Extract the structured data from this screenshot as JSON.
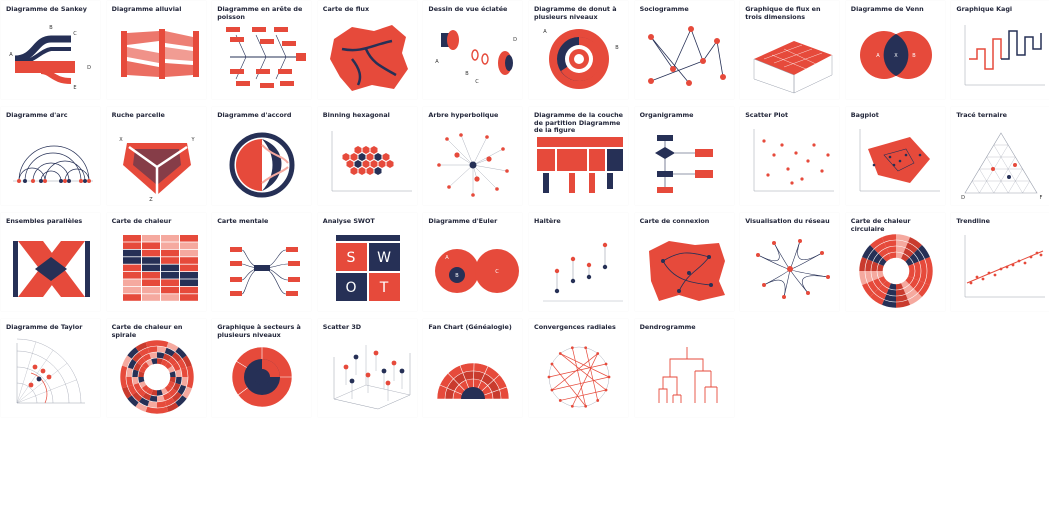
{
  "colors": {
    "red": "#e64a3b",
    "navy": "#263056",
    "lightred": "#f5a99f",
    "gray": "#9aa0ad"
  },
  "tiles": [
    {
      "id": "sankey",
      "label": "Diagramme de Sankey"
    },
    {
      "id": "alluvial",
      "label": "Diagramme alluvial"
    },
    {
      "id": "fishbone",
      "label": "Diagramme en arête de poisson"
    },
    {
      "id": "flowmap",
      "label": "Carte de flux"
    },
    {
      "id": "exploded",
      "label": "Dessin de vue éclatée"
    },
    {
      "id": "multidonut",
      "label": "Diagramme de donut à plusieurs niveaux"
    },
    {
      "id": "sociogram",
      "label": "Sociogramme"
    },
    {
      "id": "flow3d",
      "label": "Graphique de flux en trois dimensions"
    },
    {
      "id": "venn",
      "label": "Diagramme de Venn"
    },
    {
      "id": "kagi",
      "label": "Graphique Kagi"
    },
    {
      "id": "arc",
      "label": "Diagramme d'arc"
    },
    {
      "id": "hive",
      "label": "Ruche parcelle"
    },
    {
      "id": "chord",
      "label": "Diagramme d'accord"
    },
    {
      "id": "hexbin",
      "label": "Binning hexagonal"
    },
    {
      "id": "hyperbolic",
      "label": "Arbre hyperbolique"
    },
    {
      "id": "partition",
      "label": "Diagramme de la couche de partition Diagramme de la figure"
    },
    {
      "id": "orgchart",
      "label": "Organigramme"
    },
    {
      "id": "scatter",
      "label": "Scatter Plot"
    },
    {
      "id": "bagplot",
      "label": "Bagplot"
    },
    {
      "id": "ternary",
      "label": "Tracé ternaire"
    },
    {
      "id": "parallelsets",
      "label": "Ensembles parallèles"
    },
    {
      "id": "heatmap",
      "label": "Carte de chaleur"
    },
    {
      "id": "mindmap",
      "label": "Carte mentale"
    },
    {
      "id": "swot",
      "label": "Analyse SWOT"
    },
    {
      "id": "euler",
      "label": "Diagramme d'Euler"
    },
    {
      "id": "dumbbell",
      "label": "Haltère"
    },
    {
      "id": "connectionmap",
      "label": "Carte de connexion"
    },
    {
      "id": "network",
      "label": "Visualisation du réseau"
    },
    {
      "id": "circularheat",
      "label": "Carte de chaleur circulaire"
    },
    {
      "id": "trendline",
      "label": "Trendline"
    },
    {
      "id": "taylor",
      "label": "Diagramme de Taylor"
    },
    {
      "id": "spiralheat",
      "label": "Carte de chaleur en spirale"
    },
    {
      "id": "multipie",
      "label": "Graphique à secteurs à plusieurs niveaux"
    },
    {
      "id": "scatter3d",
      "label": "Scatter 3D"
    },
    {
      "id": "fanchart",
      "label": "Fan Chart (Généalogie)"
    },
    {
      "id": "radial",
      "label": "Convergences radiales"
    },
    {
      "id": "dendrogram",
      "label": "Dendrogramme"
    }
  ],
  "thumb_text": {
    "sankey": [
      "A",
      "B",
      "C",
      "D",
      "E"
    ],
    "venn": [
      "A",
      "X",
      "B"
    ],
    "hive": [
      "X",
      "Y",
      "Z"
    ],
    "exploded": [
      "A",
      "B",
      "C",
      "D"
    ],
    "multidonut": [
      "A",
      "B"
    ],
    "swot": [
      "S",
      "W",
      "O",
      "T"
    ],
    "euler": [
      "A",
      "B",
      "C"
    ],
    "ternary": [
      "D",
      "E",
      "F"
    ]
  }
}
